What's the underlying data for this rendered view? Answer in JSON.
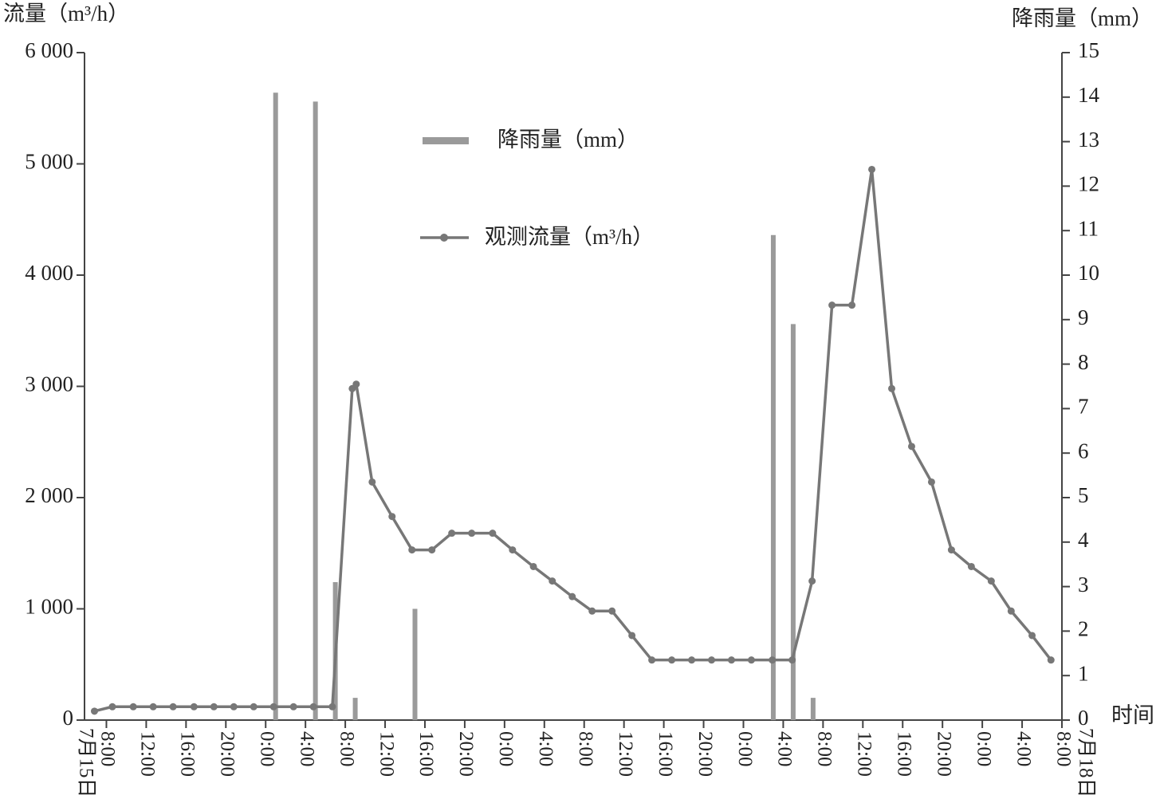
{
  "chart_data": {
    "type": "combo",
    "y_label": "流量（m³/h）",
    "y2_label": "降雨量（mm）",
    "x_label": "时间",
    "annotations": [
      "7月15日",
      "7月18日"
    ],
    "xlim": [
      5.8,
      104
    ],
    "xticks": [
      {
        "value": 8,
        "label": "8:00"
      },
      {
        "value": 12,
        "label": "12:00"
      },
      {
        "value": 16,
        "label": "16:00"
      },
      {
        "value": 20,
        "label": "20:00"
      },
      {
        "value": 24,
        "label": "0:00"
      },
      {
        "value": 28,
        "label": "4:00"
      },
      {
        "value": 32,
        "label": "8:00"
      },
      {
        "value": 36,
        "label": "12:00"
      },
      {
        "value": 40,
        "label": "16:00"
      },
      {
        "value": 44,
        "label": "20:00"
      },
      {
        "value": 48,
        "label": "0:00"
      },
      {
        "value": 52,
        "label": "4:00"
      },
      {
        "value": 56,
        "label": "8:00"
      },
      {
        "value": 60,
        "label": "12:00"
      },
      {
        "value": 64,
        "label": "16:00"
      },
      {
        "value": 68,
        "label": "20:00"
      },
      {
        "value": 72,
        "label": "0:00"
      },
      {
        "value": 76,
        "label": "4:00"
      },
      {
        "value": 80,
        "label": "8:00"
      },
      {
        "value": 84,
        "label": "12:00"
      },
      {
        "value": 88,
        "label": "16:00"
      },
      {
        "value": 92,
        "label": "20:00"
      },
      {
        "value": 96,
        "label": "0:00"
      },
      {
        "value": 100,
        "label": "4:00"
      },
      {
        "value": 104,
        "label": "8:00"
      }
    ],
    "ylim": [
      0,
      6000
    ],
    "yticks": [
      0,
      {
        "value": 1000,
        "label": "1 000"
      },
      {
        "value": 2000,
        "label": "2 000"
      },
      {
        "value": 3000,
        "label": "3 000"
      },
      {
        "value": 4000,
        "label": "4 000"
      },
      {
        "value": 5000,
        "label": "5 000"
      },
      {
        "value": 6000,
        "label": "6 000"
      }
    ],
    "y2lim": [
      0,
      15
    ],
    "y2ticks": [
      0,
      1,
      2,
      3,
      4,
      5,
      6,
      7,
      8,
      9,
      10,
      11,
      12,
      13,
      14,
      15
    ],
    "series": [
      {
        "name": "降雨量（mm）",
        "type": "bar",
        "axis": "y2",
        "color": "#9a9a9a",
        "x": [
          25,
          29,
          31,
          33,
          39,
          75,
          77,
          79
        ],
        "values": [
          14.1,
          13.9,
          3.1,
          0.5,
          2.5,
          10.9,
          8.9,
          0.5
        ]
      },
      {
        "name": "观测流量（m³/h）",
        "type": "line",
        "color": "#777777",
        "x": [
          6.8,
          8.6,
          10.7,
          12.7,
          14.7,
          16.8,
          18.8,
          20.8,
          22.8,
          24.8,
          26.8,
          28.8,
          30.7,
          32.7,
          33.1,
          34.7,
          36.7,
          38.7,
          40.7,
          42.7,
          44.7,
          46.8,
          48.8,
          50.9,
          52.8,
          54.8,
          56.8,
          58.8,
          60.8,
          62.8,
          64.8,
          66.8,
          68.8,
          70.8,
          72.8,
          74.9,
          76.9,
          78.9,
          80.9,
          82.9,
          84.9,
          86.9,
          88.9,
          90.9,
          92.9,
          94.9,
          96.9,
          98.9,
          101.0,
          102.9
        ],
        "values": [
          80,
          120,
          120,
          120,
          120,
          120,
          120,
          120,
          120,
          120,
          120,
          120,
          120,
          2980,
          3020,
          2140,
          1830,
          1530,
          1530,
          1680,
          1680,
          1680,
          1530,
          1380,
          1250,
          1110,
          980,
          980,
          760,
          540,
          540,
          540,
          540,
          540,
          540,
          540,
          540,
          1250,
          3730,
          3730,
          4950,
          2980,
          2460,
          2140,
          1530,
          1380,
          1250,
          980,
          760,
          540
        ]
      }
    ]
  }
}
